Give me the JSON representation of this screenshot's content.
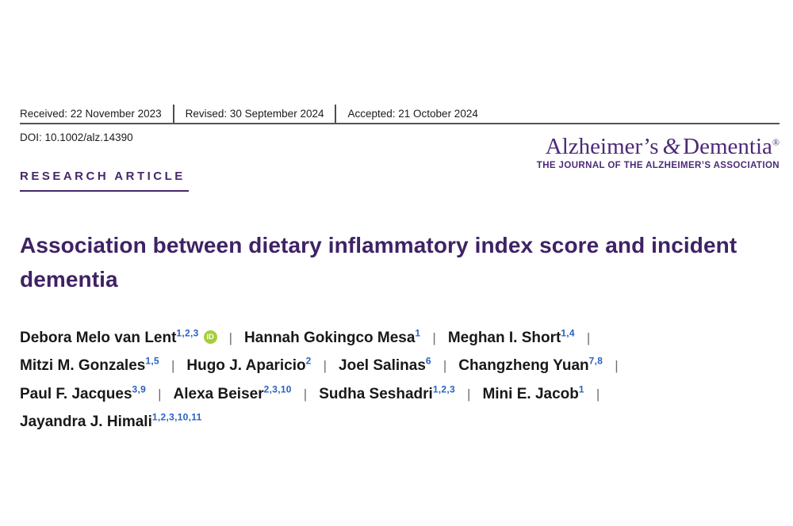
{
  "colors": {
    "journal_purple": "#4c2a77",
    "label_purple": "#46286b",
    "title_purple": "#3e2265",
    "superscript_blue": "#2961c0",
    "orcid_green": "#a6ce39",
    "rule_gray": "#555555"
  },
  "meta_bar": {
    "received": "Received: 22 November 2023",
    "revised": "Revised: 30 September 2024",
    "accepted": "Accepted: 21 October 2024"
  },
  "doi": "DOI: 10.1002/alz.14390",
  "article_type": "RESEARCH ARTICLE",
  "journal": {
    "name_part1": "Alzheimer’s",
    "ampersand": "&",
    "name_part2": "Dementia",
    "registered": "®",
    "tagline": "THE JOURNAL OF THE ALZHEIMER’S ASSOCIATION"
  },
  "title": "Association between dietary inflammatory index score and incident dementia",
  "orcid_icon": {
    "label": "iD"
  },
  "authors": {
    "separator": "|",
    "lines": [
      [
        {
          "name": "Debora Melo van Lent",
          "sup": "1,2,3",
          "orcid": true
        },
        {
          "name": "Hannah Gokingco Mesa",
          "sup": "1"
        },
        {
          "name": "Meghan I. Short",
          "sup": "1,4"
        }
      ],
      [
        {
          "name": "Mitzi M. Gonzales",
          "sup": "1,5"
        },
        {
          "name": "Hugo J. Aparicio",
          "sup": "2"
        },
        {
          "name": "Joel Salinas",
          "sup": "6"
        },
        {
          "name": "Changzheng Yuan",
          "sup": "7,8"
        }
      ],
      [
        {
          "name": "Paul F. Jacques",
          "sup": "3,9"
        },
        {
          "name": "Alexa Beiser",
          "sup": "2,3,10"
        },
        {
          "name": "Sudha Seshadri",
          "sup": "1,2,3"
        },
        {
          "name": "Mini E. Jacob",
          "sup": "1"
        }
      ],
      [
        {
          "name": "Jayandra J. Himali",
          "sup": "1,2,3,10,11"
        }
      ]
    ]
  }
}
